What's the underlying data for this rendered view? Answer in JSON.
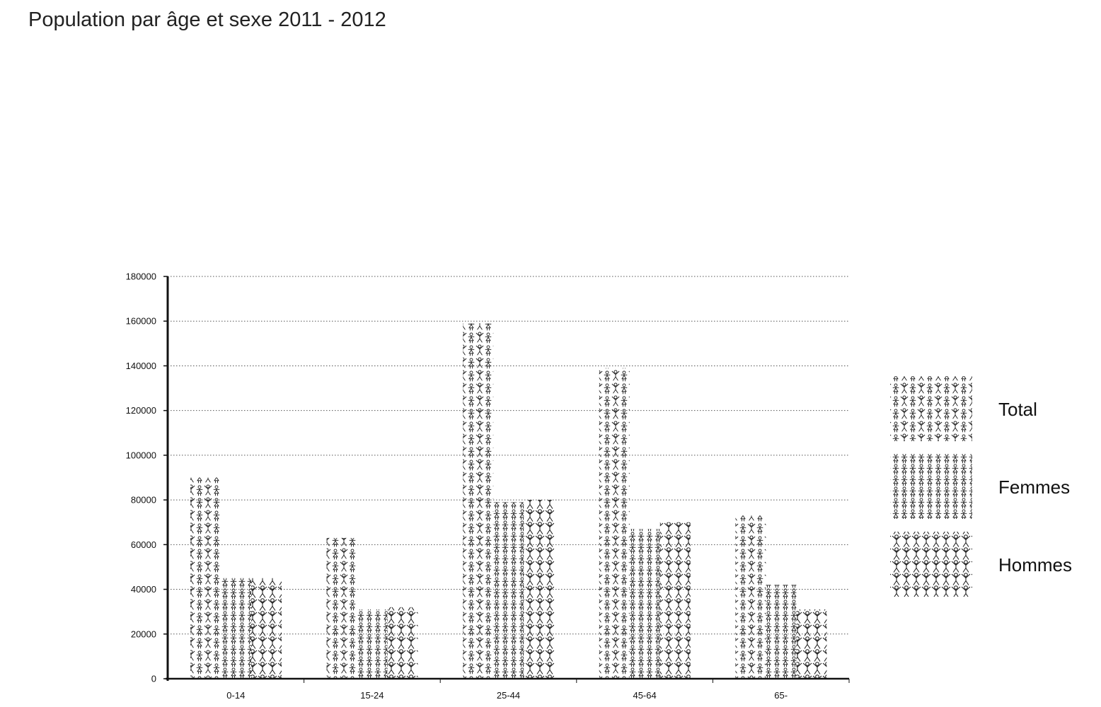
{
  "title": "Population par âge et sexe 2011 - 2012",
  "chart_data": {
    "type": "bar",
    "title": "Population par âge et sexe 2011 - 2012",
    "xlabel": "",
    "ylabel": "",
    "categories": [
      "0-14",
      "15-24",
      "25-44",
      "45-64",
      "65-"
    ],
    "series": [
      {
        "name": "Total",
        "values": [
          90000,
          63000,
          159000,
          139000,
          73000
        ],
        "pattern": "mixed"
      },
      {
        "name": "Femmes",
        "values": [
          45000,
          31000,
          79000,
          67000,
          42000
        ],
        "pattern": "women"
      },
      {
        "name": "Hommes",
        "values": [
          45000,
          32000,
          80000,
          70000,
          31000
        ],
        "pattern": "men"
      }
    ],
    "ylim": [
      0,
      180000
    ],
    "yticks": [
      0,
      20000,
      40000,
      60000,
      80000,
      100000,
      120000,
      140000,
      160000,
      180000
    ],
    "grid": true,
    "legend_position": "right",
    "colors": {
      "ink": "#111111",
      "grid": "#555555",
      "background": "#ffffff"
    }
  }
}
